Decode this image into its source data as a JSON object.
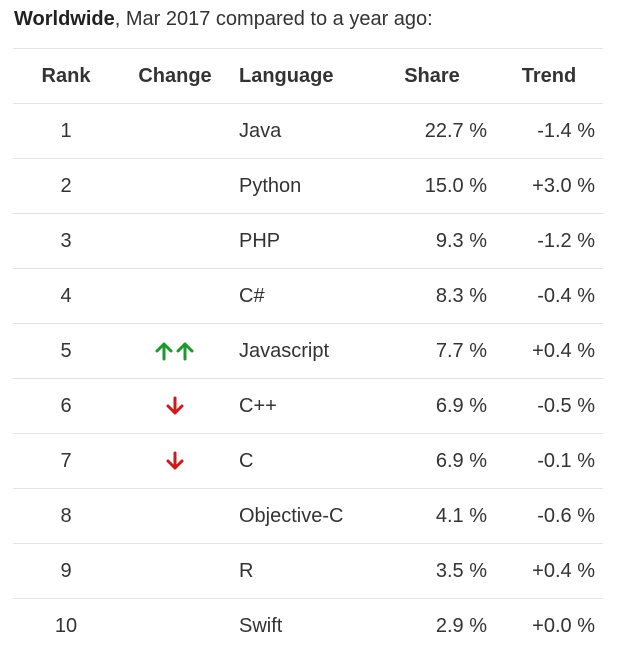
{
  "heading": {
    "bold": "Worldwide",
    "rest": ", Mar 2017 compared to a year ago:"
  },
  "columns": {
    "rank": "Rank",
    "change": "Change",
    "language": "Language",
    "share": "Share",
    "trend": "Trend"
  },
  "colors": {
    "up": "#1a9a2e",
    "down": "#cc1b1b"
  },
  "rows": [
    {
      "rank": "1",
      "change": "",
      "language": "Java",
      "share": "22.7 %",
      "trend": "-1.4 %"
    },
    {
      "rank": "2",
      "change": "",
      "language": "Python",
      "share": "15.0 %",
      "trend": "+3.0 %"
    },
    {
      "rank": "3",
      "change": "",
      "language": "PHP",
      "share": "9.3 %",
      "trend": "-1.2 %"
    },
    {
      "rank": "4",
      "change": "",
      "language": "C#",
      "share": "8.3 %",
      "trend": "-0.4 %"
    },
    {
      "rank": "5",
      "change": "double-up-arrow-icon",
      "language": "Javascript",
      "share": "7.7 %",
      "trend": "+0.4 %"
    },
    {
      "rank": "6",
      "change": "down-arrow-icon",
      "language": "C++",
      "share": "6.9 %",
      "trend": "-0.5 %"
    },
    {
      "rank": "7",
      "change": "down-arrow-icon",
      "language": "C",
      "share": "6.9 %",
      "trend": "-0.1 %"
    },
    {
      "rank": "8",
      "change": "",
      "language": "Objective-C",
      "share": "4.1 %",
      "trend": "-0.6 %"
    },
    {
      "rank": "9",
      "change": "",
      "language": "R",
      "share": "3.5 %",
      "trend": "+0.4 %"
    },
    {
      "rank": "10",
      "change": "",
      "language": "Swift",
      "share": "2.9 %",
      "trend": "+0.0 %"
    }
  ]
}
